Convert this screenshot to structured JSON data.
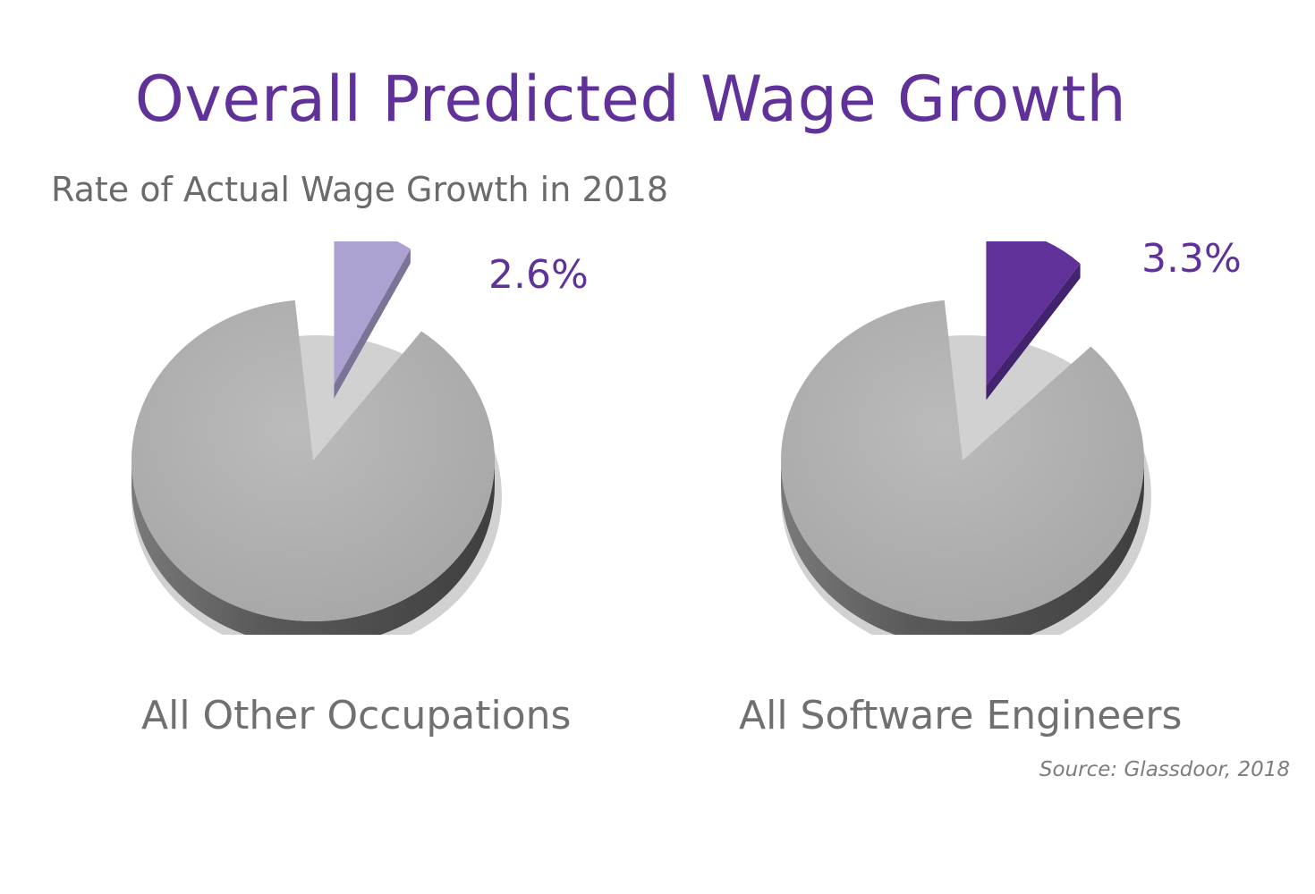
{
  "header": {
    "title": "Overall Predicted Wage Growth",
    "subtitle": "Rate of Actual Wage Growth in 2018"
  },
  "footer": {
    "source": "Source: Glassdoor, 2018"
  },
  "chart_data": [
    {
      "type": "pie",
      "title": "",
      "category_label": "All Other Occupations",
      "highlight_value": 2.6,
      "highlight_label": "2.6%",
      "highlight_color": "#aca1d1",
      "rest_color": "#b1b0b1"
    },
    {
      "type": "pie",
      "title": "",
      "category_label": "All Software Engineers",
      "highlight_value": 3.3,
      "highlight_label": "3.3%",
      "highlight_color": "#5f3199",
      "rest_color": "#b1b0b1"
    }
  ]
}
